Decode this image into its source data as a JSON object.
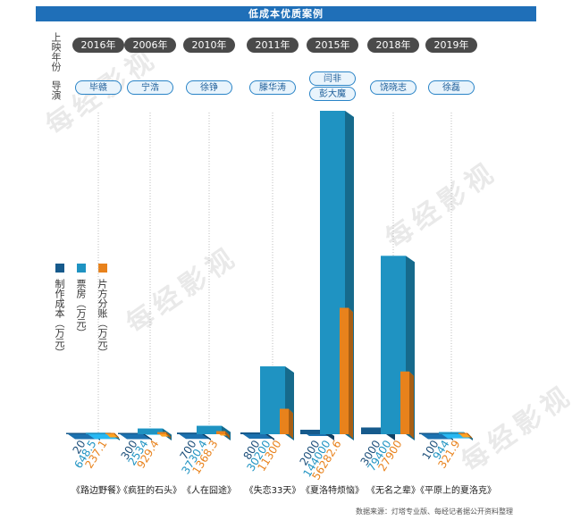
{
  "title": "低成本优质案例",
  "rows": {
    "year_label": "上映年份",
    "director_label": "导演"
  },
  "watermark": "每经影视",
  "source": "数据来源：灯塔专业版、每经记者据公开资料整理",
  "colors": {
    "cost": "#165a8c",
    "box": "#1f93c2",
    "share": "#e8821c"
  },
  "chart_data": {
    "type": "bar",
    "title": "低成本优质案例",
    "categories": [
      "《路边野餐》",
      "《疯狂的石头》",
      "《人在囧途》",
      "《失恋33天》",
      "《夏洛特烦恼》",
      "《无名之辈》",
      "《平原上的夏洛克》"
    ],
    "years": [
      "2016年",
      "2006年",
      "2010年",
      "2011年",
      "2015年",
      "2018年",
      "2019年"
    ],
    "directors": [
      [
        "毕赣"
      ],
      [
        "宁浩"
      ],
      [
        "徐铮"
      ],
      [
        "滕华涛"
      ],
      [
        "闫非",
        "彭大魔"
      ],
      [
        "饶晓志"
      ],
      [
        "徐磊"
      ]
    ],
    "series": [
      {
        "name": "制作成本（万元）",
        "values": [
          20,
          300,
          700,
          800,
          2000,
          3000,
          100
        ]
      },
      {
        "name": "票房（万元）",
        "values": [
          648.5,
          2534,
          3730.4,
          30200,
          144000,
          79400,
          944
        ]
      },
      {
        "name": "片方分账（万元）",
        "values": [
          237.1,
          929.4,
          1368.3,
          11300,
          56282.6,
          27900,
          321.9
        ]
      }
    ]
  }
}
